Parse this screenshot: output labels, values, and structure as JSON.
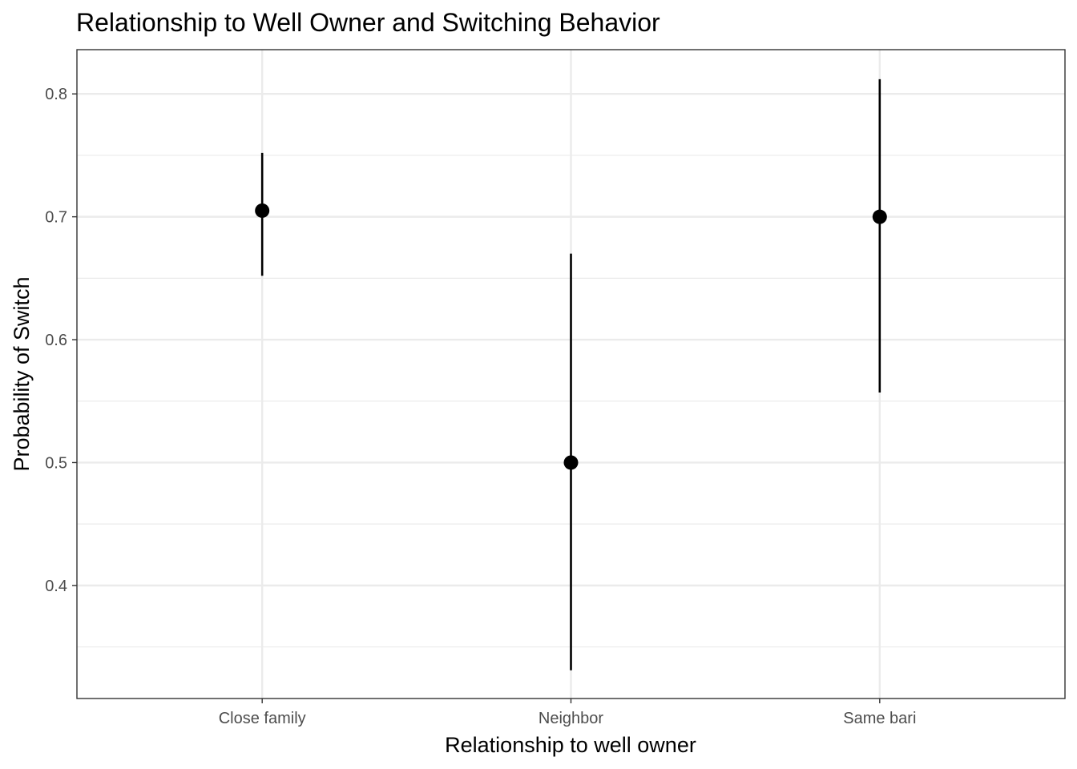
{
  "chart_data": {
    "type": "scatter",
    "title": "Relationship to Well Owner and Switching Behavior",
    "xlabel": "Relationship to well owner",
    "ylabel": "Probability of Switch",
    "categories": [
      "Close family",
      "Neighbor",
      "Same bari"
    ],
    "series": [
      {
        "points": [
          {
            "x": "Close family",
            "y": 0.705,
            "ymin": 0.652,
            "ymax": 0.752
          },
          {
            "x": "Neighbor",
            "y": 0.5,
            "ymin": 0.331,
            "ymax": 0.67
          },
          {
            "x": "Same bari",
            "y": 0.7,
            "ymin": 0.557,
            "ymax": 0.812
          }
        ]
      }
    ],
    "ylim": [
      0.308,
      0.836
    ],
    "yticks": [
      0.4,
      0.5,
      0.6,
      0.7,
      0.8
    ],
    "ytick_labels": [
      "0.4",
      "0.5",
      "0.6",
      "0.7",
      "0.8"
    ],
    "grid": true,
    "legend": "none",
    "colors": {
      "point": "#000000",
      "errorbar": "#000000",
      "grid_major": "#ebebeb",
      "grid_minor": "#ebebeb",
      "panel_border": "#333333",
      "tick_text": "#4d4d4d"
    }
  }
}
